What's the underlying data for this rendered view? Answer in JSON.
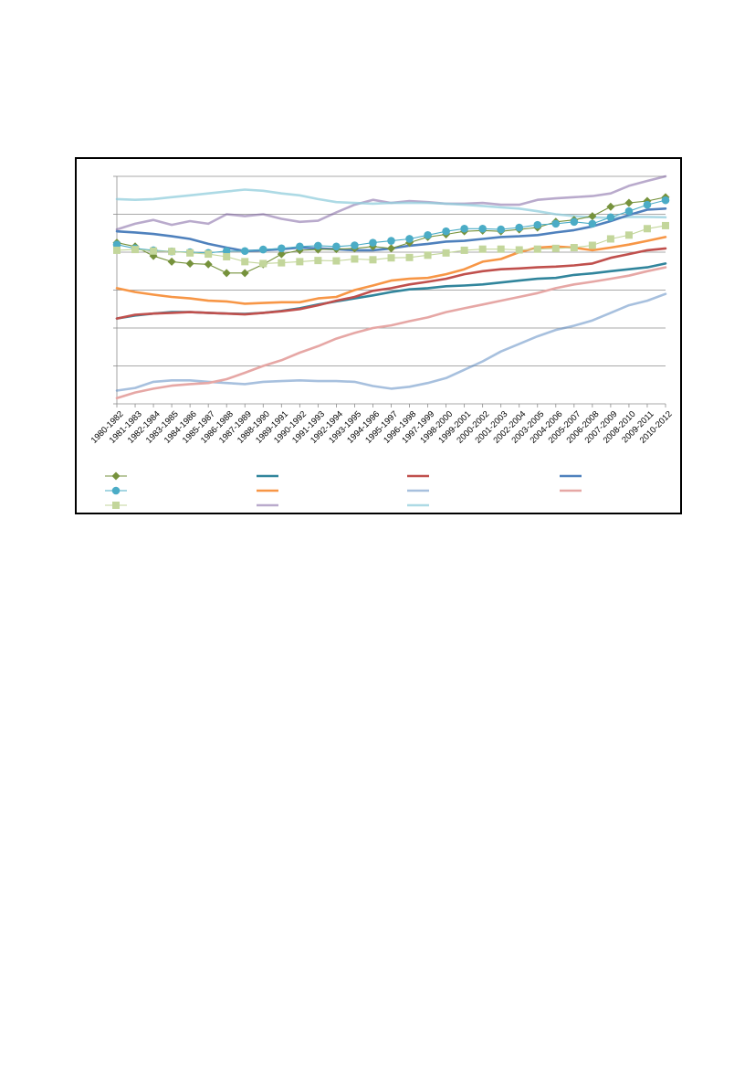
{
  "chart_data": {
    "type": "line",
    "title": "",
    "xlabel": "",
    "ylabel": "",
    "grid": true,
    "legend_position": "bottom",
    "ylim": [
      0,
      6
    ],
    "y_ticks": [
      0,
      1,
      2,
      3,
      4,
      5,
      6
    ],
    "categories": [
      "1980-1982",
      "1981-1983",
      "1982-1984",
      "1983-1985",
      "1984-1986",
      "1985-1987",
      "1986-1988",
      "1987-1989",
      "1988-1990",
      "1989-1991",
      "1990-1992",
      "1991-1993",
      "1992-1994",
      "1993-1995",
      "1994-1996",
      "1995-1997",
      "1996-1998",
      "1997-1999",
      "1998-2000",
      "1999-2001",
      "2000-2002",
      "2001-2003",
      "2002-2004",
      "2003-2005",
      "2004-2006",
      "2005-2007",
      "2006-2008",
      "2007-2009",
      "2008-2010",
      "2009-2011",
      "2010-2012"
    ],
    "series": [
      {
        "color": "#76923c",
        "marker": "diamond",
        "values": [
          4.25,
          4.15,
          3.9,
          3.75,
          3.7,
          3.68,
          3.45,
          3.45,
          3.68,
          3.95,
          4.05,
          4.07,
          4.08,
          4.1,
          4.15,
          4.1,
          4.25,
          4.4,
          4.47,
          4.55,
          4.57,
          4.55,
          4.6,
          4.65,
          4.8,
          4.85,
          4.95,
          5.2,
          5.3,
          5.35,
          5.45
        ]
      },
      {
        "color": "#4bacc6",
        "marker": "circle",
        "values": [
          4.2,
          4.1,
          4.05,
          4.02,
          4.0,
          3.98,
          4.03,
          4.03,
          4.07,
          4.1,
          4.15,
          4.17,
          4.15,
          4.18,
          4.25,
          4.3,
          4.35,
          4.45,
          4.55,
          4.62,
          4.62,
          4.6,
          4.65,
          4.72,
          4.75,
          4.8,
          4.75,
          4.92,
          5.08,
          5.25,
          5.37
        ]
      },
      {
        "color": "#c3d69b",
        "marker": "square",
        "values": [
          4.05,
          4.07,
          4.03,
          4.02,
          3.98,
          3.95,
          3.88,
          3.75,
          3.7,
          3.72,
          3.75,
          3.78,
          3.77,
          3.82,
          3.8,
          3.85,
          3.86,
          3.92,
          3.98,
          4.05,
          4.08,
          4.08,
          4.06,
          4.08,
          4.1,
          4.12,
          4.18,
          4.35,
          4.45,
          4.62,
          4.7
        ]
      },
      {
        "color": "#31859c",
        "marker": "none",
        "values": [
          2.25,
          2.33,
          2.38,
          2.42,
          2.42,
          2.4,
          2.38,
          2.37,
          2.4,
          2.45,
          2.52,
          2.62,
          2.7,
          2.78,
          2.86,
          2.95,
          3.02,
          3.05,
          3.1,
          3.12,
          3.15,
          3.2,
          3.25,
          3.3,
          3.32,
          3.4,
          3.44,
          3.5,
          3.55,
          3.6,
          3.7
        ]
      },
      {
        "color": "#f79646",
        "marker": "none",
        "values": [
          3.05,
          2.95,
          2.88,
          2.82,
          2.78,
          2.72,
          2.7,
          2.64,
          2.66,
          2.68,
          2.68,
          2.78,
          2.82,
          3.0,
          3.12,
          3.25,
          3.3,
          3.32,
          3.42,
          3.55,
          3.75,
          3.82,
          4.0,
          4.12,
          4.15,
          4.12,
          4.05,
          4.12,
          4.2,
          4.3,
          4.4
        ]
      },
      {
        "color": "#8064a2",
        "marker": "none",
        "opacity": 0.55,
        "values": [
          4.6,
          4.75,
          4.85,
          4.72,
          4.82,
          4.75,
          5.0,
          4.95,
          5.0,
          4.88,
          4.8,
          4.83,
          5.05,
          5.25,
          5.38,
          5.3,
          5.35,
          5.32,
          5.28,
          5.28,
          5.3,
          5.25,
          5.25,
          5.38,
          5.42,
          5.45,
          5.48,
          5.55,
          5.75,
          5.88,
          6.0
        ]
      },
      {
        "color": "#c0504d",
        "marker": "none",
        "values": [
          2.25,
          2.35,
          2.38,
          2.4,
          2.42,
          2.4,
          2.38,
          2.36,
          2.4,
          2.44,
          2.5,
          2.6,
          2.72,
          2.82,
          2.98,
          3.05,
          3.15,
          3.22,
          3.3,
          3.42,
          3.5,
          3.55,
          3.57,
          3.6,
          3.62,
          3.65,
          3.7,
          3.85,
          3.95,
          4.05,
          4.1
        ]
      },
      {
        "color": "#4f81bd",
        "marker": "none",
        "opacity": 0.5,
        "values": [
          0.35,
          0.42,
          0.58,
          0.62,
          0.62,
          0.58,
          0.55,
          0.52,
          0.58,
          0.6,
          0.62,
          0.6,
          0.6,
          0.58,
          0.47,
          0.4,
          0.45,
          0.55,
          0.68,
          0.9,
          1.12,
          1.38,
          1.58,
          1.78,
          1.95,
          2.06,
          2.2,
          2.4,
          2.6,
          2.72,
          2.9
        ]
      },
      {
        "color": "#92cddc",
        "marker": "none",
        "opacity": 0.75,
        "values": [
          5.4,
          5.38,
          5.4,
          5.45,
          5.5,
          5.55,
          5.6,
          5.65,
          5.62,
          5.55,
          5.5,
          5.4,
          5.32,
          5.3,
          5.28,
          5.3,
          5.3,
          5.3,
          5.28,
          5.25,
          5.22,
          5.18,
          5.15,
          5.08,
          5.0,
          4.95,
          4.92,
          4.9,
          4.93,
          4.93,
          4.92
        ]
      },
      {
        "color": "#4f81bd",
        "marker": "none",
        "values": [
          4.55,
          4.52,
          4.48,
          4.42,
          4.35,
          4.22,
          4.12,
          4.03,
          4.05,
          4.08,
          4.12,
          4.1,
          4.08,
          4.05,
          4.05,
          4.1,
          4.17,
          4.22,
          4.28,
          4.3,
          4.35,
          4.4,
          4.42,
          4.45,
          4.52,
          4.58,
          4.68,
          4.82,
          4.98,
          5.12,
          5.15
        ]
      },
      {
        "color": "#e6a7a5",
        "marker": "none",
        "values": [
          0.15,
          0.3,
          0.4,
          0.48,
          0.52,
          0.55,
          0.65,
          0.82,
          1.0,
          1.15,
          1.35,
          1.52,
          1.72,
          1.87,
          2.0,
          2.07,
          2.18,
          2.28,
          2.42,
          2.52,
          2.62,
          2.72,
          2.82,
          2.92,
          3.05,
          3.15,
          3.22,
          3.3,
          3.38,
          3.5,
          3.6
        ]
      }
    ]
  }
}
